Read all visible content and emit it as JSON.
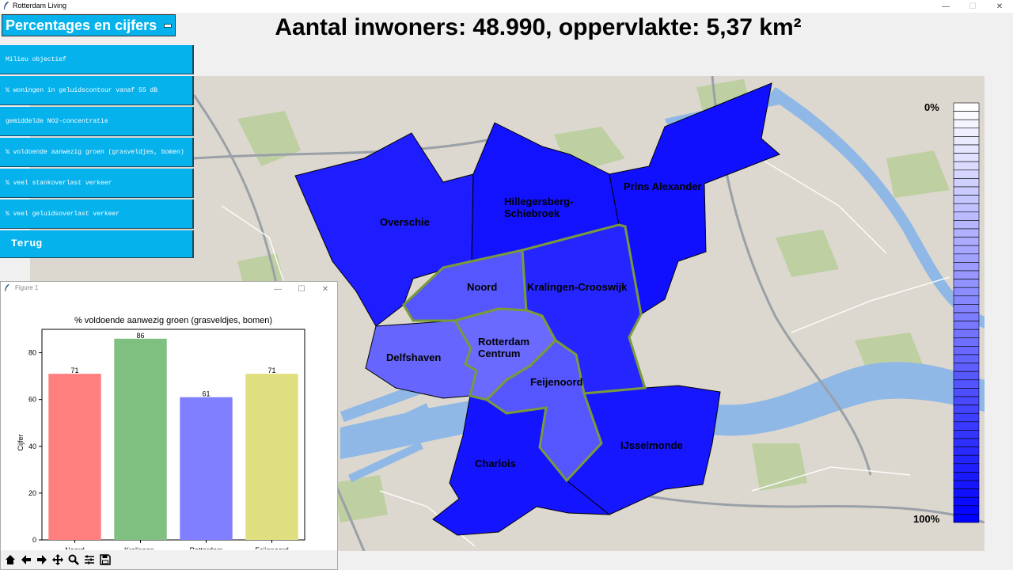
{
  "window": {
    "title": "Rotterdam Living"
  },
  "header": {
    "title": "Aantal inwoners: 48.990, oppervlakte: 5,37 km²"
  },
  "menu_button": {
    "label": "Percentages en cijfers"
  },
  "menu": {
    "items": [
      {
        "label": "Milieu objectief"
      },
      {
        "label": "% woningen in geluidscontour vanaf 55 dB"
      },
      {
        "label": "gemiddelde NO2-concentratie"
      },
      {
        "label": "% voldoende aanwezig groen (grasveldjes, bomen)"
      },
      {
        "label": "% veel stankoverlast verkeer"
      },
      {
        "label": "% veel geluidsoverlast verkeer"
      }
    ],
    "back_label": "Terug"
  },
  "map": {
    "districts": [
      {
        "name": "Overschie",
        "color": "#1d1dff",
        "selected": false
      },
      {
        "name": "Hillegersberg-\nSchiebroek",
        "color": "#1212ff",
        "selected": false
      },
      {
        "name": "Prins Alexander",
        "color": "#1010ff",
        "selected": false
      },
      {
        "name": "Noord",
        "color": "#5656ff",
        "selected": true
      },
      {
        "name": "Kralingen-Crooswijk",
        "color": "#2525ff",
        "selected": true
      },
      {
        "name": "Delfshaven",
        "color": "#6666ff",
        "selected": false
      },
      {
        "name": "Rotterdam\nCentrum",
        "color": "#6a6aff",
        "selected": true
      },
      {
        "name": "Feijenoord",
        "color": "#5656ff",
        "selected": true
      },
      {
        "name": "Charlois",
        "color": "#1414ff",
        "selected": false
      },
      {
        "name": "IJsselmonde",
        "color": "#1616ff",
        "selected": false
      }
    ],
    "legend": {
      "top_label": "0%",
      "bottom_label": "100%",
      "color_from": "#ffffff",
      "color_to": "#0000ff"
    },
    "selected_border_color": "#7a9a3a"
  },
  "figure": {
    "window_title": "Figure 1"
  },
  "chart_data": {
    "type": "bar",
    "title": "% voldoende aanwezig groen (grasveldjes, bomen)",
    "categories": [
      "Noord",
      "Kralingen-\nCrooswijk",
      "Rotterdam\nCentrum",
      "Feijenoord"
    ],
    "values": [
      71,
      86,
      61,
      71
    ],
    "colors": [
      "#ff7f7f",
      "#7fbf7f",
      "#7f7fff",
      "#dfdf7f"
    ],
    "xlabel": "",
    "ylabel": "Cijfer",
    "ylim": [
      0,
      90
    ],
    "yticks": [
      0,
      20,
      40,
      60,
      80
    ],
    "grid": false,
    "data_labels": true
  },
  "toolbar": {
    "icons": [
      "home-icon",
      "back-arrow-icon",
      "forward-arrow-icon",
      "pan-icon",
      "zoom-icon",
      "configure-icon",
      "save-icon"
    ]
  }
}
